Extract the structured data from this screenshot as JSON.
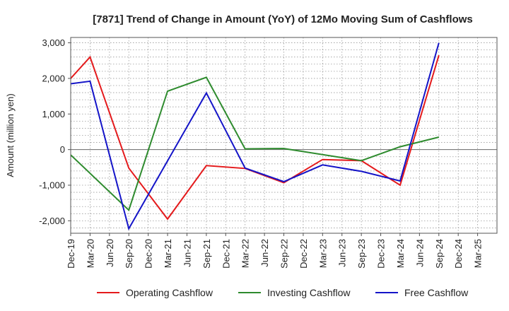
{
  "chart_data": {
    "type": "line",
    "title": "[7871]  Trend of Change in Amount (YoY) of 12Mo Moving Sum of Cashflows",
    "xlabel": "",
    "ylabel": "Amount (million yen)",
    "ylim": [
      -2350,
      3150
    ],
    "yticks": [
      3000,
      2000,
      1000,
      0,
      -1000,
      -2000
    ],
    "ytick_labels": [
      "3,000",
      "2,000",
      "1,000",
      "0",
      "-1,000",
      "-2,000"
    ],
    "categories": [
      "Dec-19",
      "Mar-20",
      "Jun-20",
      "Sep-20",
      "Dec-20",
      "Mar-21",
      "Jun-21",
      "Sep-21",
      "Dec-21",
      "Mar-22",
      "Jun-22",
      "Sep-22",
      "Dec-22",
      "Mar-23",
      "Jun-23",
      "Sep-23",
      "Dec-23",
      "Mar-24",
      "Jun-24",
      "Sep-24",
      "Dec-24",
      "Mar-25"
    ],
    "grid": true,
    "legend_position": "bottom",
    "series": [
      {
        "name": "Operating Cashflow",
        "color": "#e41a1c",
        "values": [
          2000,
          2600,
          null,
          -520,
          null,
          -1950,
          null,
          -450,
          null,
          -530,
          null,
          -930,
          null,
          -280,
          null,
          -310,
          null,
          -1000,
          null,
          2650,
          null,
          null
        ]
      },
      {
        "name": "Investing Cashflow",
        "color": "#2e8b2e",
        "values": [
          -150,
          null,
          null,
          -1700,
          null,
          1640,
          null,
          2030,
          null,
          20,
          null,
          30,
          null,
          null,
          null,
          -310,
          null,
          80,
          null,
          350,
          null,
          null
        ]
      },
      {
        "name": "Free Cashflow",
        "color": "#1414c8",
        "values": [
          1850,
          1920,
          null,
          -2220,
          null,
          null,
          null,
          1590,
          null,
          -520,
          null,
          -900,
          null,
          -430,
          null,
          -610,
          null,
          -880,
          null,
          3000,
          null,
          null
        ]
      }
    ]
  }
}
